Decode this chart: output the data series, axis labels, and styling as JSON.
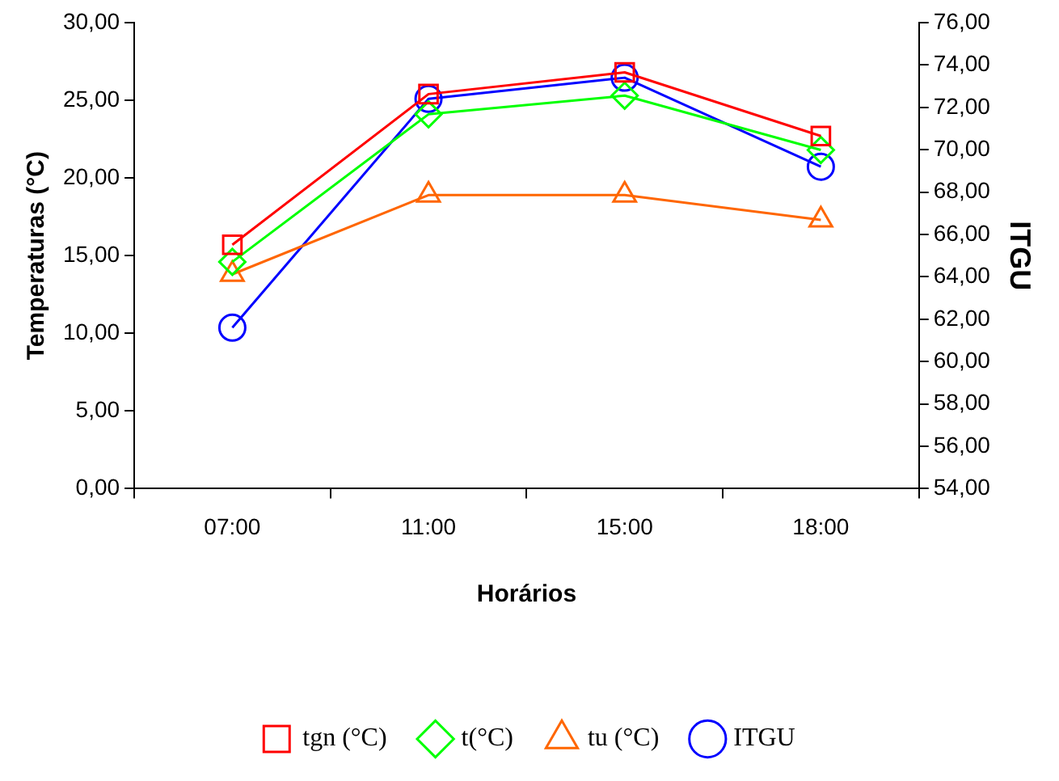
{
  "chart_data": {
    "type": "line",
    "xlabel": "Horários",
    "ylabel": "Temperaturas (°C)",
    "y2label": "ITGU",
    "categories": [
      "07:00",
      "11:00",
      "15:00",
      "18:00"
    ],
    "series": [
      {
        "name": "tgn (°C)",
        "color": "#ff0000",
        "marker": "square",
        "values": [
          15.7,
          25.4,
          26.8,
          22.7
        ]
      },
      {
        "name": "t(°C)",
        "color": "#00ff00",
        "marker": "diamond",
        "values": [
          14.6,
          24.1,
          25.3,
          21.8
        ]
      },
      {
        "name": "tu (°C)",
        "color": "#ff6600",
        "marker": "triangle",
        "values": [
          13.8,
          18.9,
          18.9,
          17.3
        ]
      },
      {
        "name": "ITGU",
        "color": "#0000ff",
        "marker": "circle",
        "axis": "y2",
        "values": [
          61.6,
          72.4,
          73.4,
          69.2
        ]
      }
    ],
    "ylim": [
      0,
      30
    ],
    "yticks": [
      {
        "value": 0,
        "label": "0,00"
      },
      {
        "value": 5,
        "label": "5,00"
      },
      {
        "value": 10,
        "label": "10,00"
      },
      {
        "value": 15,
        "label": "15,00"
      },
      {
        "value": 20,
        "label": "20,00"
      },
      {
        "value": 25,
        "label": "25,00"
      },
      {
        "value": 30,
        "label": "30,00"
      }
    ],
    "y2lim": [
      54,
      76
    ],
    "y2ticks": [
      {
        "value": 54,
        "label": "54,00"
      },
      {
        "value": 56,
        "label": "56,00"
      },
      {
        "value": 58,
        "label": "58,00"
      },
      {
        "value": 60,
        "label": "60,00"
      },
      {
        "value": 62,
        "label": "62,00"
      },
      {
        "value": 64,
        "label": "64,00"
      },
      {
        "value": 66,
        "label": "66,00"
      },
      {
        "value": 68,
        "label": "68,00"
      },
      {
        "value": 70,
        "label": "70,00"
      },
      {
        "value": 72,
        "label": "72,00"
      },
      {
        "value": 74,
        "label": "74,00"
      },
      {
        "value": 76,
        "label": "76,00"
      }
    ],
    "grid": false,
    "legend": "bottom",
    "line_style": "solid"
  }
}
